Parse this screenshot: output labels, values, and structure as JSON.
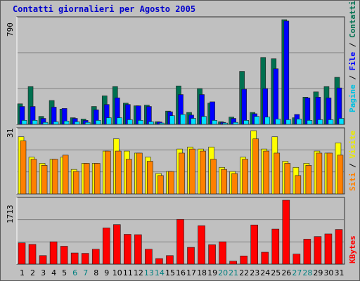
{
  "title": "Contatti giornalieri per Agosto 2005",
  "colors": {
    "pagine": "#00e0ff",
    "file": "#0000ff",
    "contatti": "#007050",
    "siti": "#ff8000",
    "visite": "#ffff00",
    "kbytes": "#ff0000",
    "weekday_label": "#000000",
    "weekend_label": "#008080"
  },
  "panels": {
    "top": {
      "max_label": "790",
      "legend": [
        {
          "text": "Pagine",
          "color": "#00c0e0"
        },
        {
          "text": "File",
          "color": "#0000ff"
        },
        {
          "text": "Contatti",
          "color": "#007050"
        }
      ]
    },
    "middle": {
      "max_label": "31",
      "legend": [
        {
          "text": "Siti",
          "color": "#ff8000"
        },
        {
          "text": "Visite",
          "color": "#e8e800"
        }
      ]
    },
    "bottom": {
      "max_label": "1713",
      "legend": [
        {
          "text": "KBytes",
          "color": "#ff0000"
        }
      ]
    }
  },
  "chart_data": [
    {
      "type": "bar",
      "title": "Contatti giornalieri per Agosto 2005",
      "ylabel": "790",
      "ylim": [
        0,
        790
      ],
      "categories": [
        "1",
        "2",
        "3",
        "4",
        "5",
        "6",
        "7",
        "8",
        "9",
        "10",
        "11",
        "12",
        "13",
        "14",
        "15",
        "16",
        "17",
        "18",
        "19",
        "20",
        "21",
        "22",
        "23",
        "24",
        "25",
        "26",
        "27",
        "28",
        "29",
        "30",
        "31"
      ],
      "series": [
        {
          "name": "Contatti",
          "values": [
            155,
            285,
            60,
            180,
            115,
            50,
            40,
            135,
            215,
            285,
            160,
            140,
            145,
            20,
            100,
            290,
            90,
            270,
            160,
            20,
            55,
            400,
            90,
            505,
            495,
            790,
            50,
            205,
            245,
            285,
            355
          ]
        },
        {
          "name": "File",
          "values": [
            135,
            135,
            45,
            130,
            120,
            45,
            30,
            110,
            150,
            200,
            150,
            140,
            135,
            18,
            95,
            225,
            70,
            225,
            170,
            15,
            45,
            265,
            80,
            270,
            420,
            780,
            75,
            200,
            205,
            200,
            275
          ]
        },
        {
          "name": "Pagine",
          "values": [
            30,
            30,
            15,
            20,
            25,
            20,
            15,
            30,
            50,
            50,
            35,
            30,
            20,
            10,
            65,
            75,
            45,
            60,
            30,
            10,
            15,
            30,
            60,
            55,
            40,
            35,
            40,
            30,
            35,
            35,
            45
          ]
        }
      ]
    },
    {
      "type": "bar",
      "ylabel": "31",
      "ylim": [
        0,
        31
      ],
      "categories": [
        "1",
        "2",
        "3",
        "4",
        "5",
        "6",
        "7",
        "8",
        "9",
        "10",
        "11",
        "12",
        "13",
        "14",
        "15",
        "16",
        "17",
        "18",
        "19",
        "20",
        "21",
        "22",
        "23",
        "24",
        "25",
        "26",
        "27",
        "28",
        "29",
        "30",
        "31"
      ],
      "series": [
        {
          "name": "Visite",
          "values": [
            28,
            18,
            15,
            17,
            18,
            12,
            15,
            15,
            21,
            27,
            21,
            20,
            18,
            10,
            11,
            22,
            23,
            22,
            23,
            13,
            11,
            18,
            31,
            22,
            28,
            16,
            13,
            15,
            21,
            20,
            25
          ]
        },
        {
          "name": "Siti",
          "values": [
            26,
            17,
            14,
            17,
            19,
            11,
            15,
            15,
            21,
            21,
            17,
            20,
            16,
            9,
            11,
            20,
            22,
            21,
            17,
            12,
            10,
            17,
            27,
            21,
            20,
            15,
            9,
            14,
            20,
            20,
            19
          ]
        }
      ]
    },
    {
      "type": "bar",
      "ylabel": "1713",
      "ylim": [
        0,
        1713
      ],
      "categories": [
        "1",
        "2",
        "3",
        "4",
        "5",
        "6",
        "7",
        "8",
        "9",
        "10",
        "11",
        "12",
        "13",
        "14",
        "15",
        "16",
        "17",
        "18",
        "19",
        "20",
        "21",
        "22",
        "23",
        "24",
        "25",
        "26",
        "27",
        "28",
        "29",
        "30",
        "31"
      ],
      "series": [
        {
          "name": "KBytes",
          "values": [
            570,
            530,
            230,
            600,
            480,
            300,
            290,
            400,
            970,
            1060,
            800,
            790,
            400,
            150,
            230,
            1200,
            450,
            1030,
            520,
            600,
            80,
            220,
            1050,
            320,
            940,
            1713,
            270,
            670,
            740,
            810,
            930
          ]
        }
      ]
    }
  ],
  "weekend_days": [
    6,
    7,
    13,
    14,
    20,
    21,
    27,
    28
  ]
}
